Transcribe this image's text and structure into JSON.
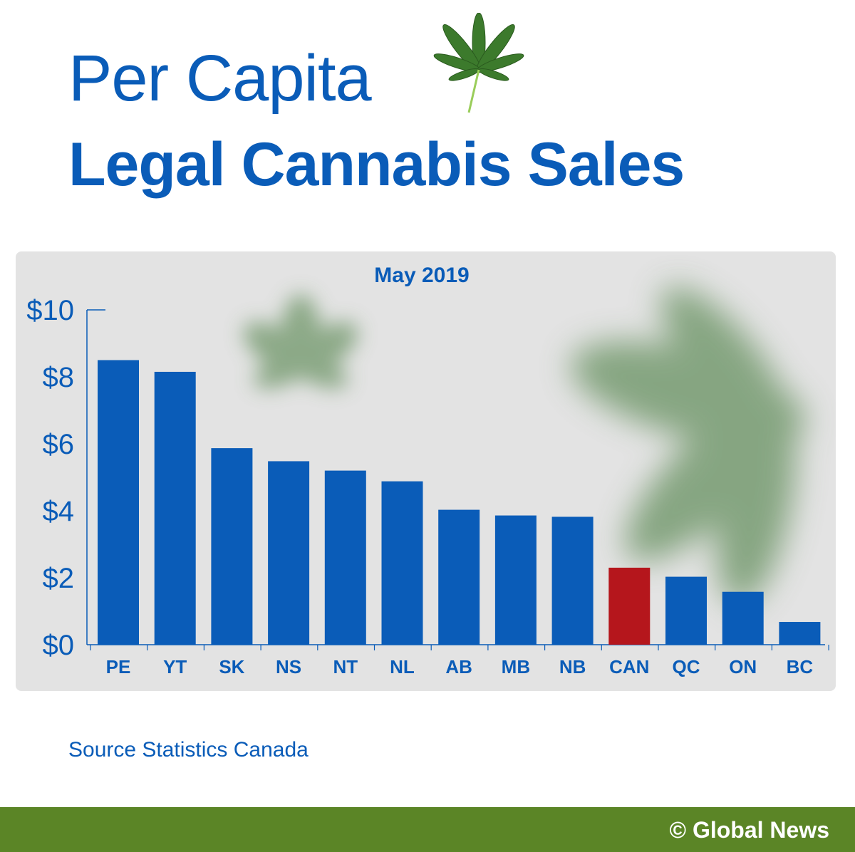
{
  "header": {
    "title_line1": "Per Capita",
    "title_line2": "Legal Cannabis Sales",
    "leaf_icon": "cannabis-leaf-icon"
  },
  "chart_data": {
    "type": "bar",
    "title": "May 2019",
    "xlabel": "",
    "ylabel": "",
    "ylim": [
      0,
      10
    ],
    "yticks": [
      "$0",
      "$2",
      "$4",
      "$6",
      "$8",
      "$10"
    ],
    "grid": false,
    "categories": [
      "PE",
      "YT",
      "SK",
      "NS",
      "NT",
      "NL",
      "AB",
      "MB",
      "NB",
      "CAN",
      "QC",
      "ON",
      "BC"
    ],
    "values": [
      8.5,
      8.15,
      5.87,
      5.48,
      5.2,
      4.88,
      4.03,
      3.86,
      3.82,
      2.3,
      2.03,
      1.58,
      0.68
    ],
    "bar_color": "#0a5cb8",
    "highlight_category": "CAN",
    "highlight_color": "#b5161c",
    "axis_color": "#0a5cb8",
    "text_color": "#0a5cb8"
  },
  "source": "Source Statistics Canada",
  "footer": {
    "copyright_symbol": "©",
    "brand": "Global News",
    "color": "#5b8526"
  }
}
